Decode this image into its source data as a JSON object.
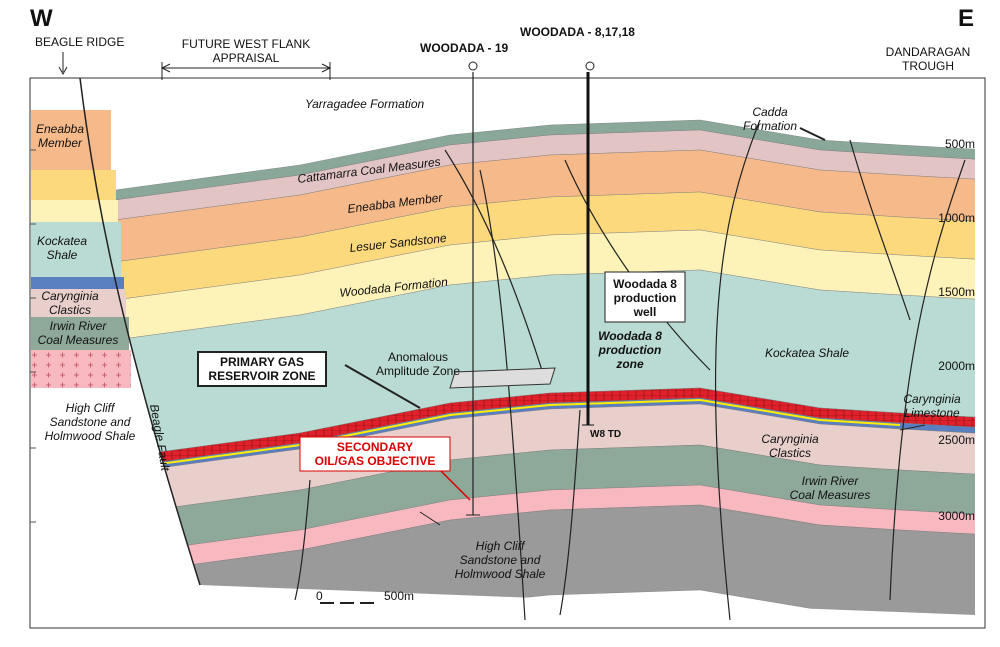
{
  "header": {
    "west": "W",
    "east": "E",
    "beagle_ridge": "BEAGLE RIDGE",
    "future_west_flank": [
      "FUTURE WEST FLANK",
      "APPRAISAL"
    ],
    "woodada_19": "WOODADA - 19",
    "woodada_8": "WOODADA - 8,17,18",
    "dandaragan": [
      "DANDARAGAN",
      "TROUGH"
    ]
  },
  "formations": {
    "yarragadee": "Yarragadee Formation",
    "cadda": [
      "Cadda",
      "Formation"
    ],
    "cattamarra": "Cattamarra Coal Measures",
    "eneabba": "Eneabba Member",
    "lesuer": "Lesuer Sandstone",
    "woodada": "Woodada Formation",
    "kockatea_right": "Kockatea Shale",
    "carynginia_limestone": [
      "Carynginia",
      "Limestone"
    ],
    "carynginia_clastics_right": [
      "Carynginia",
      "Clastics"
    ],
    "irwin_right": [
      "Irwin River",
      "Coal Measures"
    ],
    "high_cliff_bottom": [
      "High Cliff",
      "Sandstone and",
      "Holmwood Shale"
    ],
    "beagle_fault": "Beagle Fault"
  },
  "left_column": {
    "eneabba": [
      "Eneabba",
      "Member"
    ],
    "kockatea": [
      "Kockatea",
      "Shale"
    ],
    "carynginia": [
      "Carynginia",
      "Clastics"
    ],
    "irwin": [
      "Irwin River",
      "Coal Measures"
    ],
    "high_cliff": [
      "High Cliff",
      "Sandstone and",
      "Holmwood Shale"
    ]
  },
  "callouts": {
    "production_well": [
      "Woodada 8",
      "production",
      "well"
    ],
    "production_zone": [
      "Woodada 8",
      "production",
      "zone"
    ],
    "primary_gas": [
      "PRIMARY GAS",
      "RESERVOIR ZONE"
    ],
    "anomalous": [
      "Anomalous",
      "Amplitude Zone"
    ],
    "secondary": [
      "SECONDARY",
      "OIL/GAS OBJECTIVE"
    ],
    "w8_td": "W8 TD"
  },
  "depth_labels": [
    "500m",
    "1000m",
    "1500m",
    "2000m",
    "2500m",
    "3000m"
  ],
  "scale_bar": {
    "start": "0",
    "end": "500m"
  }
}
